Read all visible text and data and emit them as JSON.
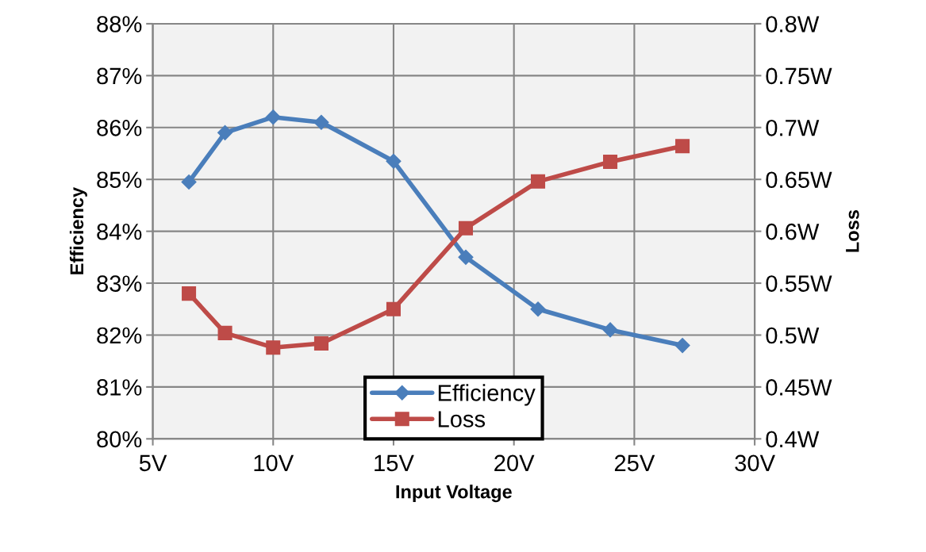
{
  "chart_data": {
    "type": "line",
    "xlabel": "Input Voltage",
    "ylabel": "Efficiency",
    "y2label": "Loss",
    "x": [
      6.5,
      8,
      10,
      12,
      15,
      18,
      21,
      24,
      27
    ],
    "series": [
      {
        "name": "Efficiency",
        "color": "#4a7ebb",
        "marker": "diamond",
        "values": [
          84.95,
          85.9,
          86.2,
          86.1,
          85.35,
          83.5,
          82.5,
          82.1,
          81.8
        ]
      },
      {
        "name": "Loss",
        "color": "#be4b48",
        "marker": "square",
        "axis": "y2",
        "values": [
          0.54,
          0.502,
          0.488,
          0.492,
          0.525,
          0.603,
          0.648,
          0.667,
          0.682
        ]
      }
    ],
    "xlim": [
      5,
      30
    ],
    "xticks": [
      {
        "value": 5,
        "label": "5V"
      },
      {
        "value": 10,
        "label": "10V"
      },
      {
        "value": 15,
        "label": "15V"
      },
      {
        "value": 20,
        "label": "20V"
      },
      {
        "value": 25,
        "label": "25V"
      },
      {
        "value": 30,
        "label": "30V"
      }
    ],
    "ylim": [
      80,
      88
    ],
    "yticks": [
      {
        "value": 80,
        "label": "80%"
      },
      {
        "value": 81,
        "label": "81%"
      },
      {
        "value": 82,
        "label": "82%"
      },
      {
        "value": 83,
        "label": "83%"
      },
      {
        "value": 84,
        "label": "84%"
      },
      {
        "value": 85,
        "label": "85%"
      },
      {
        "value": 86,
        "label": "86%"
      },
      {
        "value": 87,
        "label": "87%"
      },
      {
        "value": 88,
        "label": "88%"
      }
    ],
    "y2lim": [
      0.4,
      0.8
    ],
    "y2ticks": [
      {
        "value": 0.4,
        "label": "0.4W"
      },
      {
        "value": 0.45,
        "label": "0.45W"
      },
      {
        "value": 0.5,
        "label": "0.5W"
      },
      {
        "value": 0.55,
        "label": "0.55W"
      },
      {
        "value": 0.6,
        "label": "0.6W"
      },
      {
        "value": 0.65,
        "label": "0.65W"
      },
      {
        "value": 0.7,
        "label": "0.7W"
      },
      {
        "value": 0.75,
        "label": "0.75W"
      },
      {
        "value": 0.8,
        "label": "0.8W"
      }
    ],
    "grid": true,
    "legend": "bottom",
    "line_style": "solid"
  }
}
